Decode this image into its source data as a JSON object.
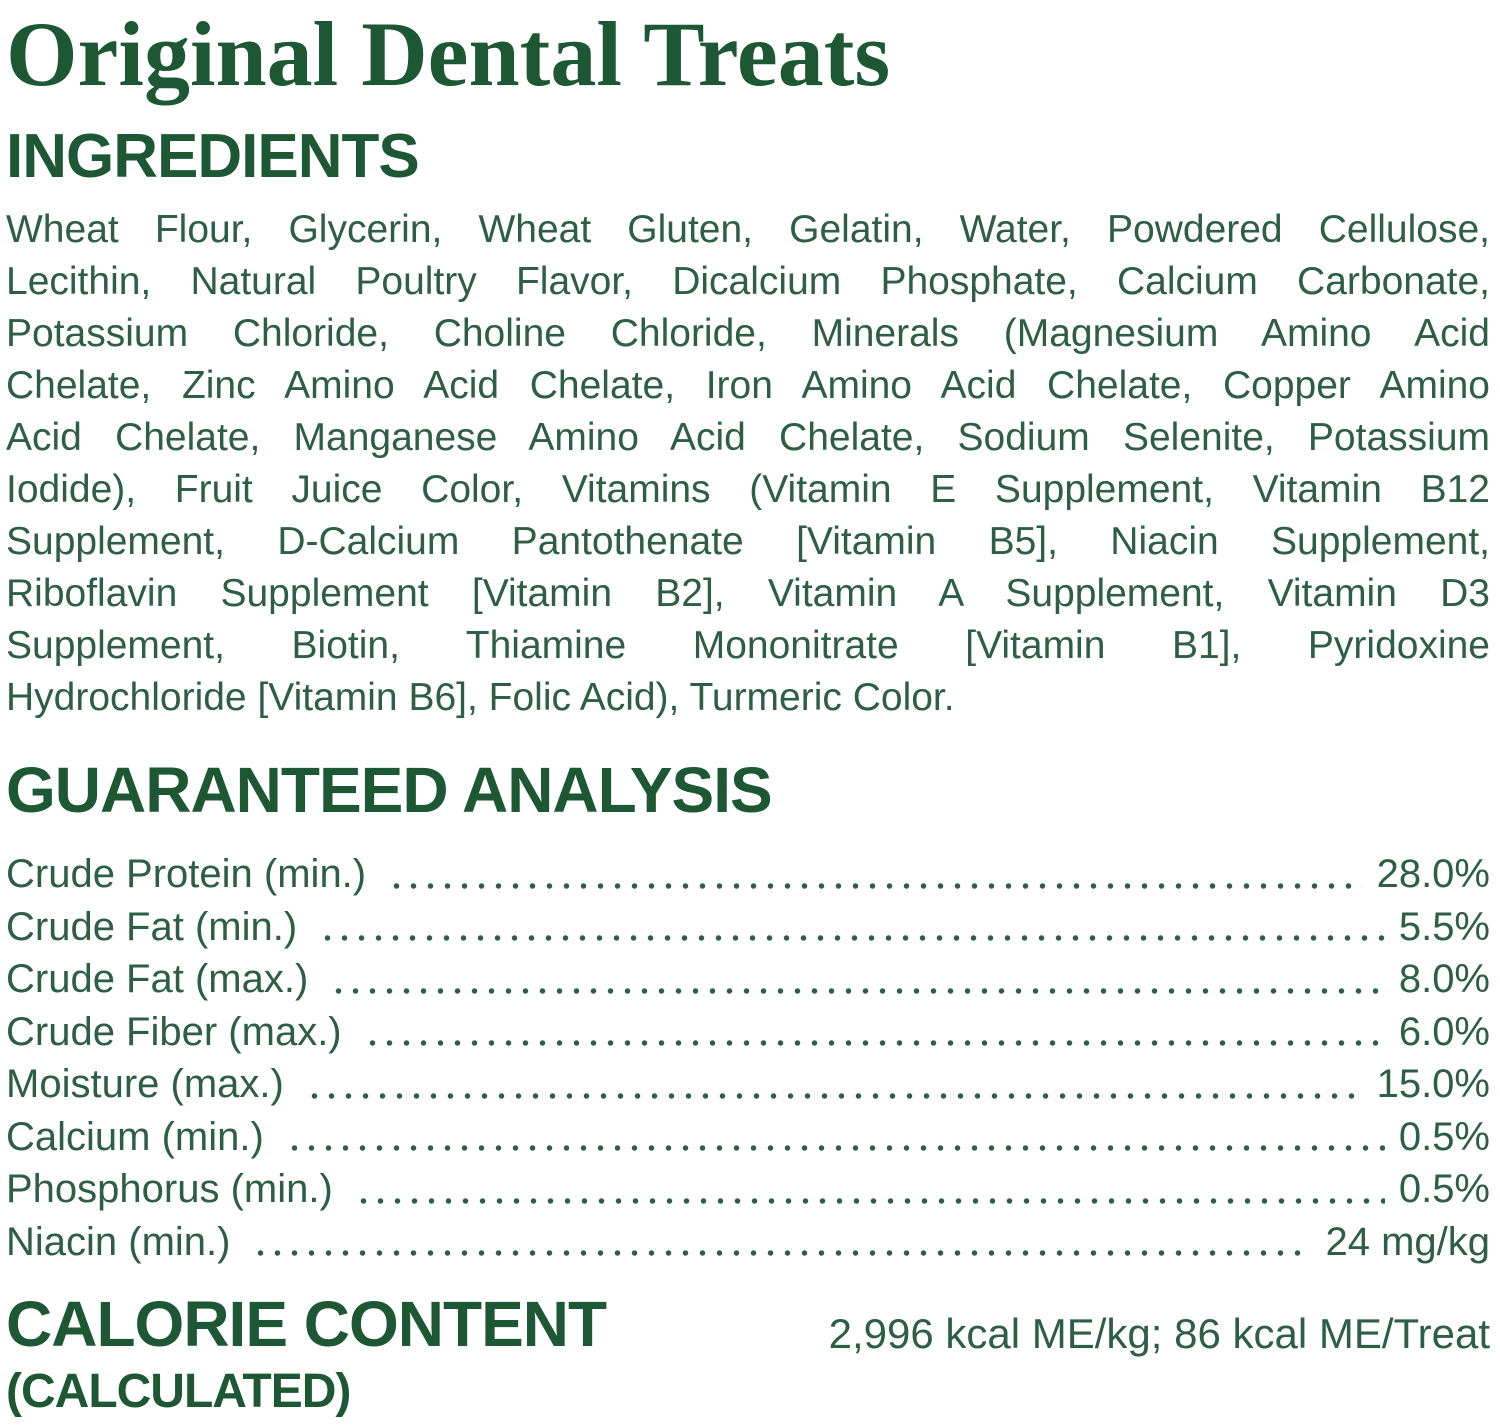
{
  "page": {
    "title": "Original Dental Treats",
    "heading_color": "#1d5733",
    "body_color": "#2e5e43"
  },
  "ingredients": {
    "heading": "INGREDIENTS",
    "lines": [
      "Wheat Flour, Glycerin, Wheat Gluten, Gelatin, Water, Powdered Cellulose,",
      "Lecithin, Natural Poultry Flavor, Dicalcium Phosphate, Calcium Carbonate,",
      "Potassium Chloride, Choline Chloride, Minerals (Magnesium Amino Acid",
      "Chelate, Zinc Amino Acid Chelate, Iron Amino Acid Chelate, Copper Amino",
      "Acid Chelate, Manganese Amino Acid Chelate, Sodium Selenite, Potassium",
      "Iodide), Fruit Juice Color, Vitamins (Vitamin E Supplement, Vitamin B12",
      "Supplement, D-Calcium Pantothenate [Vitamin B5], Niacin Supplement,",
      "Riboflavin Supplement [Vitamin B2], Vitamin A Supplement, Vitamin D3",
      "Supplement, Biotin, Thiamine Mononitrate [Vitamin B1], Pyridoxine",
      "Hydrochloride [Vitamin B6], Folic Acid), Turmeric Color."
    ]
  },
  "guaranteed_analysis": {
    "heading": "GUARANTEED ANALYSIS",
    "rows": [
      {
        "label": "Crude Protein (min.)",
        "value": "28.0%"
      },
      {
        "label": "Crude Fat (min.)",
        "value": "5.5%"
      },
      {
        "label": "Crude Fat (max.)",
        "value": "8.0%"
      },
      {
        "label": "Crude Fiber (max.)",
        "value": "6.0%"
      },
      {
        "label": "Moisture (max.)",
        "value": "15.0%"
      },
      {
        "label": "Calcium (min.)",
        "value": "0.5%"
      },
      {
        "label": "Phosphorus (min.)",
        "value": "0.5%"
      },
      {
        "label": "Niacin (min.)",
        "value": "24 mg/kg"
      }
    ]
  },
  "calorie_content": {
    "heading": "CALORIE CONTENT",
    "subheading": "(CALCULATED)",
    "value": "2,996 kcal ME/kg; 86 kcal ME/Treat"
  }
}
